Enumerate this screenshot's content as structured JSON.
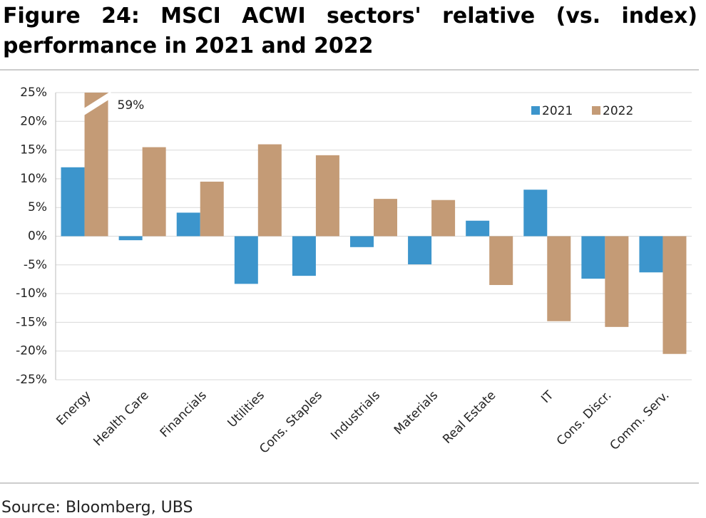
{
  "chart_data": {
    "type": "bar",
    "title": "Figure 24: MSCI ACWI sectors' relative (vs. index) performance in 2021 and 2022",
    "source": "Source: Bloomberg, UBS",
    "categories": [
      "Energy",
      "Health Care",
      "Financials",
      "Utilities",
      "Cons. Staples",
      "Industrials",
      "Materials",
      "Real Estate",
      "IT",
      "Cons. Discr.",
      "Comm. Serv."
    ],
    "series": [
      {
        "name": "2021",
        "color": "#3c95cc",
        "values": [
          12,
          -0.7,
          4.1,
          -8.3,
          -6.9,
          -1.9,
          -4.9,
          2.7,
          8.1,
          -7.4,
          -6.3
        ]
      },
      {
        "name": "2022",
        "color": "#c49b76",
        "values": [
          59,
          15.5,
          9.5,
          16,
          14.1,
          6.5,
          6.3,
          -8.5,
          -14.8,
          -15.8,
          -20.5
        ],
        "value_labels": [
          "59%",
          null,
          null,
          null,
          null,
          null,
          null,
          null,
          null,
          null,
          null
        ]
      }
    ],
    "ylim": [
      -25,
      25
    ],
    "yticks": [
      {
        "value": 25,
        "label": "25%"
      },
      {
        "value": 20,
        "label": "20%"
      },
      {
        "value": 15,
        "label": "15%"
      },
      {
        "value": 10,
        "label": "10%"
      },
      {
        "value": 5,
        "label": "5%"
      },
      {
        "value": 0,
        "label": "0%"
      },
      {
        "value": -5,
        "label": "-5%"
      },
      {
        "value": -10,
        "label": "-10%"
      },
      {
        "value": -15,
        "label": "-15%"
      },
      {
        "value": -20,
        "label": "-20%"
      },
      {
        "value": -25,
        "label": "-25%"
      }
    ],
    "negative_tick_label_color": "#e0201b",
    "grid": true,
    "legend": "top-right"
  }
}
